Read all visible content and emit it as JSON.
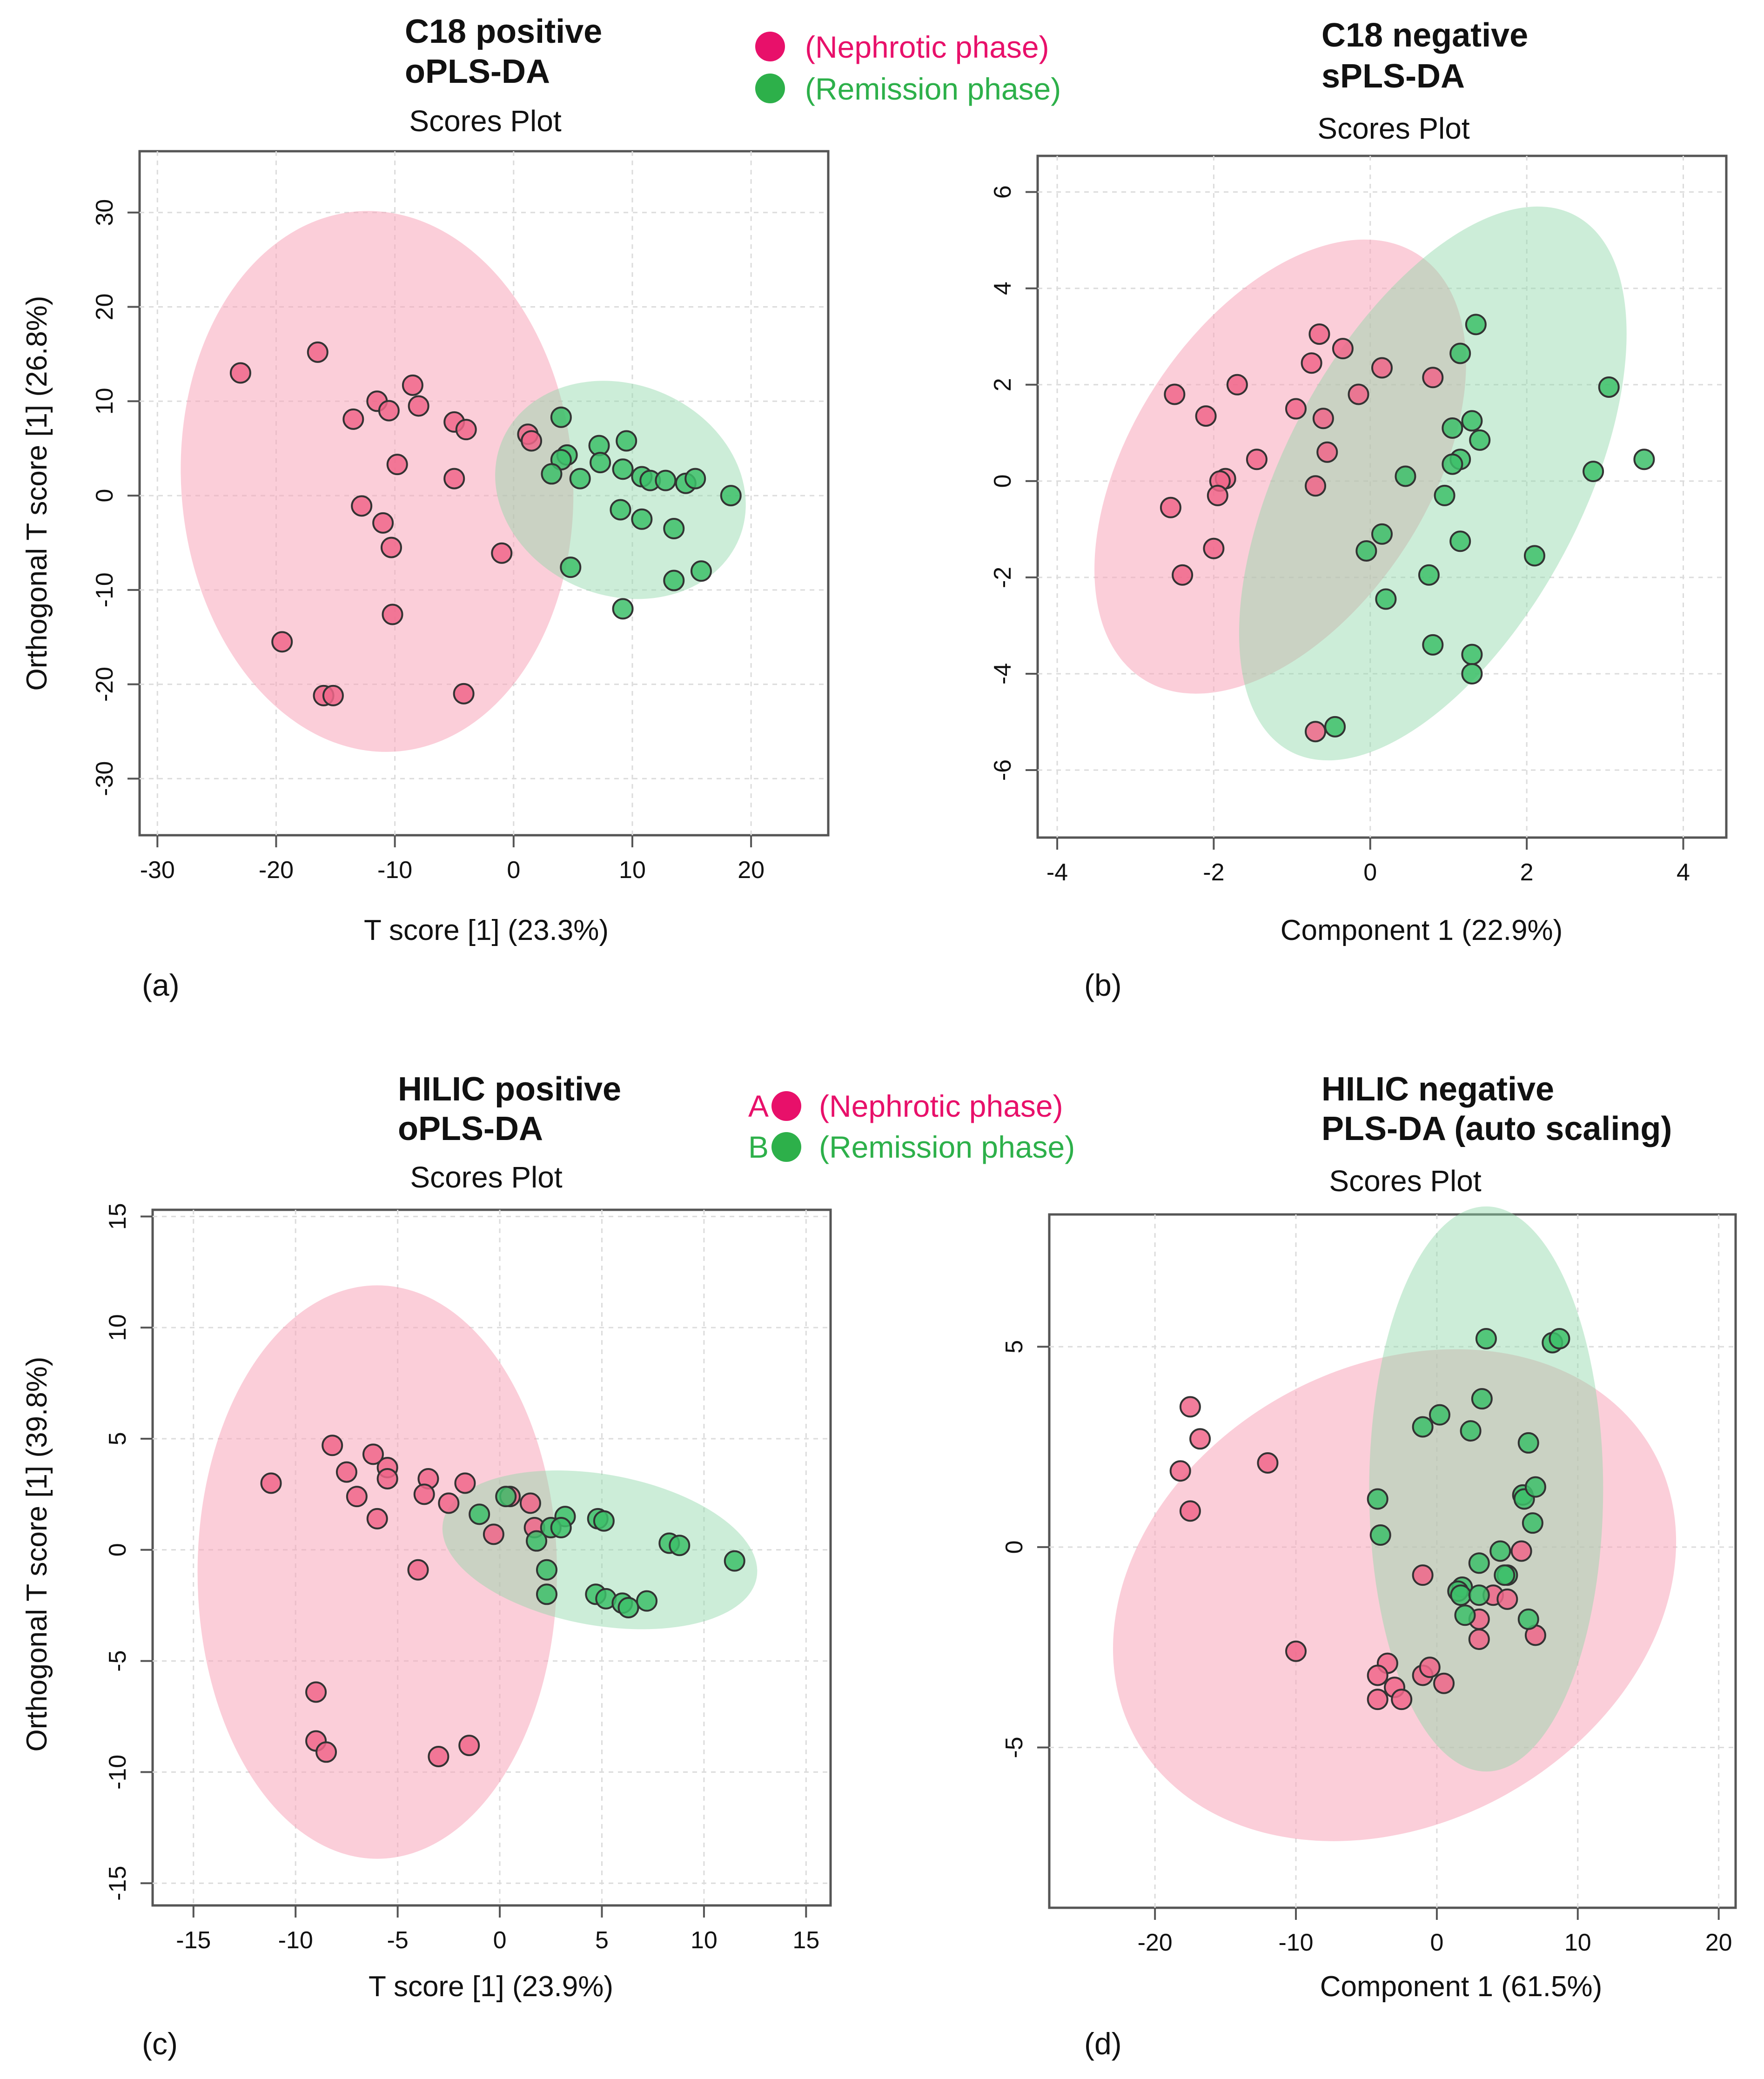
{
  "colors": {
    "nephrotic": "#F0668A",
    "remission": "#3DBF6A",
    "nephrotic_text": "#E8106A",
    "remission_text": "#2DB04A",
    "ellipse_pink": "#F7A6BA",
    "ellipse_green": "#8ED8A8"
  },
  "legends": [
    {
      "items": [
        {
          "prefix": "",
          "text": "(Nephrotic phase)"
        },
        {
          "prefix": "",
          "text": "(Remission phase)"
        }
      ]
    },
    {
      "items": [
        {
          "prefix": "A",
          "text": "(Nephrotic phase)"
        },
        {
          "prefix": "B",
          "text": "(Remission phase)"
        }
      ]
    }
  ],
  "chart_data": [
    {
      "type": "scatter",
      "panel_label": "(a)",
      "title": [
        "C18 positive",
        "oPLS-DA"
      ],
      "subtitle": "Scores Plot",
      "xlabel": "T score [1] (23.3%)",
      "ylabel": "Orthogonal T score [1] (26.8%)",
      "xlim": [
        -31.5,
        26.5
      ],
      "ylim": [
        -36,
        36.5
      ],
      "xticks": [
        -30,
        -20,
        -10,
        0,
        10,
        20
      ],
      "yticks": [
        -30,
        -20,
        -10,
        0,
        10,
        20,
        30
      ],
      "ellipses": [
        {
          "group": "nephrotic",
          "cx": -11.5,
          "cy": 1.5,
          "rx": 16.5,
          "ry": 28.7,
          "angle": 4
        },
        {
          "group": "remission",
          "cx": 9.0,
          "cy": 0.6,
          "rx": 10.8,
          "ry": 11.2,
          "angle": -22
        }
      ],
      "series": [
        {
          "name": "Nephrotic phase",
          "group": "nephrotic",
          "points": [
            [
              -23,
              13
            ],
            [
              -16.5,
              15.2
            ],
            [
              -11.5,
              10
            ],
            [
              -10.5,
              9
            ],
            [
              -8.5,
              11.7
            ],
            [
              -8,
              9.5
            ],
            [
              -13.5,
              8.1
            ],
            [
              -5,
              7.8
            ],
            [
              -4,
              7
            ],
            [
              -9.8,
              3.3
            ],
            [
              -5,
              1.8
            ],
            [
              -12.8,
              -1.1
            ],
            [
              -11,
              -2.9
            ],
            [
              -10.3,
              -5.5
            ],
            [
              -1,
              -6.1
            ],
            [
              -10.2,
              -12.6
            ],
            [
              -19.5,
              -15.5
            ],
            [
              -16,
              -21.2
            ],
            [
              -15.2,
              -21.2
            ],
            [
              -4.2,
              -21
            ],
            [
              1.2,
              6.5
            ],
            [
              1.5,
              5.8
            ]
          ]
        },
        {
          "name": "Remission phase",
          "group": "remission",
          "points": [
            [
              4,
              8.3
            ],
            [
              7.2,
              5.3
            ],
            [
              9.5,
              5.8
            ],
            [
              4.5,
              4.3
            ],
            [
              4,
              3.8
            ],
            [
              7.3,
              3.5
            ],
            [
              9.2,
              2.8
            ],
            [
              3.2,
              2.3
            ],
            [
              5.6,
              1.8
            ],
            [
              10.8,
              2
            ],
            [
              11.5,
              1.6
            ],
            [
              12.8,
              1.6
            ],
            [
              14.5,
              1.3
            ],
            [
              15.3,
              1.8
            ],
            [
              18.3,
              0
            ],
            [
              9,
              -1.5
            ],
            [
              10.8,
              -2.5
            ],
            [
              13.5,
              -3.5
            ],
            [
              4.8,
              -7.6
            ],
            [
              13.5,
              -9
            ],
            [
              15.8,
              -8
            ],
            [
              9.2,
              -12
            ]
          ]
        }
      ]
    },
    {
      "type": "scatter",
      "panel_label": "(b)",
      "title": [
        "C18 negative",
        "sPLS-DA"
      ],
      "subtitle": "Scores Plot",
      "xlabel": "Component 1 (22.9%)",
      "ylabel": "",
      "xlim": [
        -4.25,
        4.55
      ],
      "ylim": [
        -7.4,
        6.75
      ],
      "xticks": [
        -4,
        -2,
        0,
        2,
        4
      ],
      "yticks": [
        -6,
        -4,
        -2,
        0,
        2,
        4,
        6
      ],
      "ellipses": [
        {
          "group": "nephrotic",
          "cx": -1.15,
          "cy": 0.3,
          "rx": 1.9,
          "ry": 5.25,
          "angle": -33
        },
        {
          "group": "remission",
          "cx": 0.8,
          "cy": -0.05,
          "rx": 1.9,
          "ry": 6.3,
          "angle": -28
        }
      ],
      "series": [
        {
          "name": "Nephrotic phase",
          "group": "nephrotic",
          "points": [
            [
              -2.5,
              1.8
            ],
            [
              -2.1,
              1.35
            ],
            [
              -1.7,
              2
            ],
            [
              -0.65,
              3.05
            ],
            [
              -0.75,
              2.45
            ],
            [
              -0.35,
              2.75
            ],
            [
              -0.95,
              1.5
            ],
            [
              -0.6,
              1.3
            ],
            [
              -0.15,
              1.8
            ],
            [
              0.15,
              2.35
            ],
            [
              0.8,
              2.15
            ],
            [
              -1.45,
              0.45
            ],
            [
              -0.55,
              0.6
            ],
            [
              -1.85,
              0.05
            ],
            [
              -1.92,
              0
            ],
            [
              -1.95,
              -0.3
            ],
            [
              -2.55,
              -0.55
            ],
            [
              -0.7,
              -0.1
            ],
            [
              -2,
              -1.4
            ],
            [
              -2.4,
              -1.95
            ],
            [
              -0.7,
              -5.2
            ]
          ]
        },
        {
          "name": "Remission phase",
          "group": "remission",
          "points": [
            [
              1.35,
              3.25
            ],
            [
              1.15,
              2.65
            ],
            [
              1.3,
              1.25
            ],
            [
              1.05,
              1.1
            ],
            [
              1.4,
              0.85
            ],
            [
              1.15,
              0.45
            ],
            [
              1.05,
              0.35
            ],
            [
              0.45,
              0.1
            ],
            [
              0.95,
              -0.3
            ],
            [
              1.15,
              -1.25
            ],
            [
              0.15,
              -1.1
            ],
            [
              -0.05,
              -1.45
            ],
            [
              0.75,
              -1.95
            ],
            [
              0.2,
              -2.45
            ],
            [
              0.8,
              -3.4
            ],
            [
              1.3,
              -3.6
            ],
            [
              1.3,
              -4
            ],
            [
              -0.45,
              -5.1
            ],
            [
              2.1,
              -1.55
            ],
            [
              3.05,
              1.95
            ],
            [
              2.85,
              0.2
            ],
            [
              3.5,
              0.45
            ]
          ]
        }
      ]
    },
    {
      "type": "scatter",
      "panel_label": "(c)",
      "title": [
        "HILIC positive",
        "oPLS-DA"
      ],
      "subtitle": "Scores Plot",
      "xlabel": "T score [1] (23.9%)",
      "ylabel": "Orthogonal T score [1] (39.8%)",
      "xlim": [
        -17,
        16.2
      ],
      "ylim": [
        -16,
        15.3
      ],
      "xticks": [
        -15,
        -10,
        -5,
        0,
        5,
        10,
        15
      ],
      "yticks": [
        -15,
        -10,
        -5,
        0,
        5,
        10,
        15
      ],
      "ellipses": [
        {
          "group": "nephrotic",
          "cx": -6,
          "cy": -1,
          "rx": 8.8,
          "ry": 12.9,
          "angle": 0
        },
        {
          "group": "remission",
          "cx": 4.9,
          "cy": 0,
          "rx": 7.8,
          "ry": 3.4,
          "angle": -10
        }
      ],
      "series": [
        {
          "name": "Nephrotic phase",
          "group": "nephrotic",
          "points": [
            [
              -11.2,
              3
            ],
            [
              -8.2,
              4.7
            ],
            [
              -6.2,
              4.3
            ],
            [
              -5.5,
              3.7
            ],
            [
              -7.5,
              3.5
            ],
            [
              -5.5,
              3.2
            ],
            [
              -3.5,
              3.2
            ],
            [
              -1.7,
              3
            ],
            [
              -3.7,
              2.5
            ],
            [
              -7,
              2.4
            ],
            [
              -2.5,
              2.1
            ],
            [
              -6,
              1.4
            ],
            [
              0.5,
              2.4
            ],
            [
              1.5,
              2.1
            ],
            [
              1.7,
              1
            ],
            [
              -0.3,
              0.7
            ],
            [
              -4,
              -0.9
            ],
            [
              -9,
              -6.4
            ],
            [
              -9,
              -8.6
            ],
            [
              -8.5,
              -9.1
            ],
            [
              -3,
              -9.3
            ],
            [
              -1.5,
              -8.8
            ]
          ]
        },
        {
          "name": "Remission phase",
          "group": "remission",
          "points": [
            [
              0.3,
              2.4
            ],
            [
              -1,
              1.6
            ],
            [
              3.2,
              1.5
            ],
            [
              4.8,
              1.4
            ],
            [
              5.1,
              1.3
            ],
            [
              2.5,
              1
            ],
            [
              1.8,
              0.4
            ],
            [
              8.3,
              0.3
            ],
            [
              8.8,
              0.2
            ],
            [
              2.3,
              -0.9
            ],
            [
              2.3,
              -2
            ],
            [
              4.7,
              -2
            ],
            [
              5.2,
              -2.2
            ],
            [
              6,
              -2.4
            ],
            [
              6.3,
              -2.6
            ],
            [
              7.2,
              -2.3
            ],
            [
              11.5,
              -0.5
            ],
            [
              3,
              1
            ]
          ]
        }
      ]
    },
    {
      "type": "scatter",
      "panel_label": "(d)",
      "title": [
        "HILIC negative",
        "PLS-DA (auto scaling)"
      ],
      "subtitle": "Scores Plot",
      "xlabel": "Component 1 (61.5%)",
      "ylabel": "",
      "xlim": [
        -27.5,
        21.2
      ],
      "ylim": [
        -9,
        8.3
      ],
      "xticks": [
        -20,
        -10,
        0,
        10,
        20
      ],
      "yticks": [
        -5,
        0,
        5
      ],
      "ellipses": [
        {
          "group": "nephrotic",
          "cx": -3,
          "cy": -1.2,
          "rx": 21,
          "ry": 5.7,
          "angle": 29
        },
        {
          "group": "remission",
          "cx": 3.5,
          "cy": 1.45,
          "rx": 8.3,
          "ry": 7.05,
          "angle": 0
        }
      ],
      "series": [
        {
          "name": "Nephrotic phase",
          "group": "nephrotic",
          "points": [
            [
              -17.5,
              3.5
            ],
            [
              -16.8,
              2.7
            ],
            [
              -18.2,
              1.9
            ],
            [
              -12,
              2.1
            ],
            [
              -17.5,
              0.9
            ],
            [
              -1,
              -0.7
            ],
            [
              1.5,
              -1.1
            ],
            [
              6,
              -0.1
            ],
            [
              4,
              -1.2
            ],
            [
              5,
              -1.3
            ],
            [
              3,
              -1.8
            ],
            [
              7,
              -2.2
            ],
            [
              3,
              -2.3
            ],
            [
              -10,
              -2.6
            ],
            [
              -3.5,
              -2.9
            ],
            [
              -4.2,
              -3.2
            ],
            [
              -1,
              -3.2
            ],
            [
              -0.5,
              -3
            ],
            [
              0.5,
              -3.4
            ],
            [
              -3,
              -3.5
            ],
            [
              -4.2,
              -3.8
            ],
            [
              -2.5,
              -3.8
            ]
          ]
        },
        {
          "name": "Remission phase",
          "group": "remission",
          "points": [
            [
              3.5,
              5.2
            ],
            [
              8.2,
              5.1
            ],
            [
              8.7,
              5.2
            ],
            [
              -1,
              3
            ],
            [
              0.2,
              3.3
            ],
            [
              2.4,
              2.9
            ],
            [
              3.2,
              3.7
            ],
            [
              6.5,
              2.6
            ],
            [
              6.1,
              1.3
            ],
            [
              6.2,
              1.2
            ],
            [
              -4.2,
              1.2
            ],
            [
              7,
              1.5
            ],
            [
              6.8,
              0.6
            ],
            [
              -4,
              0.3
            ],
            [
              4.5,
              -0.1
            ],
            [
              3,
              -0.4
            ],
            [
              5,
              -0.7
            ],
            [
              4.8,
              -0.7
            ],
            [
              1.8,
              -1
            ],
            [
              1.5,
              -1.1
            ],
            [
              1.7,
              -1.2
            ],
            [
              3,
              -1.2
            ],
            [
              2,
              -1.7
            ],
            [
              6.5,
              -1.8
            ]
          ]
        }
      ]
    }
  ]
}
